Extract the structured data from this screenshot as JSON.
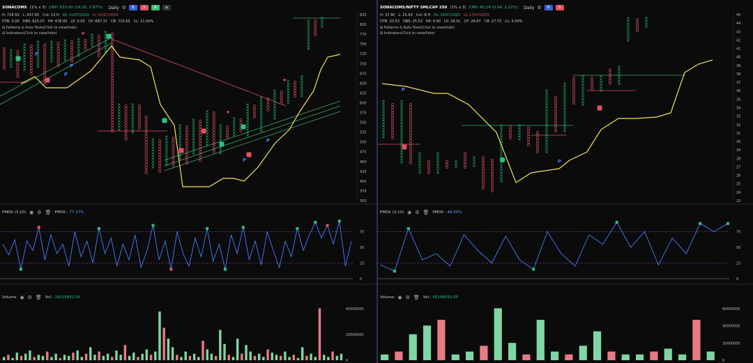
{
  "left": {
    "symbol": "SONACOMS",
    "box": "(1% x 3)",
    "cmp": "CMP: 833.00 (24.00, 2.97%)",
    "timeframe": "Daily",
    "stats": [
      "H: 718.50",
      "L: 637.65",
      "Cnt: 13 H",
      "Dt: 11/07/2024",
      "Lt: 01/07/2024"
    ],
    "stats2": [
      "DTB: 0.00",
      "DBS: 625.07",
      "HP: 678.00",
      "LP: 0.00",
      "CP: 687.37",
      "CB: 725.65",
      "CL: 11.00%"
    ],
    "patterns_label": "Patterns & Auto Tools(Click to view/hide)",
    "indicators_label": "Indicators(Click to view/hide)",
    "price_axis": [
      "825",
      "800",
      "775",
      "750",
      "725",
      "700",
      "675",
      "650",
      "625",
      "600",
      "575",
      "550",
      "525",
      "500",
      "475",
      "450",
      "425",
      "400",
      "375",
      "350"
    ],
    "pmox_label": "PMOX (3,10)",
    "pmox_value_label": "PMOX : ",
    "pmox_value": "77.27%",
    "pmox_axis": [
      "75",
      "50",
      "25",
      "0"
    ],
    "volume_label": "Volume",
    "vol_value_label": "Vol : ",
    "vol_value": "18225852.00",
    "vol_axis": [
      "40000000",
      "20000000",
      "0"
    ],
    "pmox": [
      55,
      38,
      62,
      15,
      60,
      45,
      82,
      30,
      70,
      40,
      55,
      20,
      75,
      35,
      60,
      25,
      80,
      40,
      65,
      20,
      55,
      30,
      70,
      18,
      45,
      85,
      30,
      60,
      15,
      75,
      40,
      20,
      65,
      35,
      80,
      28,
      55,
      15,
      70,
      40,
      82,
      30,
      60,
      22,
      75,
      45,
      18,
      60,
      35,
      80,
      45,
      70,
      90,
      65,
      85,
      55,
      92,
      20,
      60
    ],
    "vol": [
      3,
      5,
      2,
      7,
      4,
      6,
      9,
      3,
      5,
      4,
      8,
      3,
      6,
      2,
      5,
      4,
      7,
      9,
      3,
      6,
      12,
      5,
      8,
      4,
      6,
      3,
      9,
      5,
      14,
      4,
      7,
      3,
      6,
      10,
      5,
      8,
      45,
      30,
      20,
      12,
      5,
      3,
      8,
      4,
      6,
      3,
      18,
      10,
      6,
      4,
      28,
      15,
      5,
      3,
      20,
      6,
      14,
      8,
      4,
      6,
      3,
      10,
      7,
      5,
      4,
      8,
      3,
      5,
      2,
      12,
      4,
      6,
      3,
      48,
      5,
      3,
      8,
      4,
      6
    ]
  },
  "right": {
    "symbol": "SONACOMS/NIFTY SMLCAP 250",
    "box": "(1% x 3)",
    "cmp": "CMP: 45.24 (0.94, 2.12%)",
    "timeframe": "Daily",
    "stats": [
      "H: 37.40",
      "L: 25.63",
      "Cnt: 8 H",
      "Dt: 24/07/2025",
      "Lt: 17/07/2025"
    ],
    "stats2": [
      "DTB: 33.53",
      "DBS: 25.53",
      "HP: 0.00",
      "LP: 28.51",
      "CP: 26.67",
      "CB: 27.73",
      "CL: 6.00%"
    ],
    "patterns_label": "Patterns & Auto Tools(Click to view/hide)",
    "indicators_label": "Indicators(Click to view/hide)",
    "price_axis": [
      "45",
      "44",
      "43",
      "42",
      "41",
      "40",
      "39",
      "38",
      "37",
      "36",
      "35",
      "34",
      "33",
      "32",
      "31",
      "30",
      "29",
      "28",
      "27",
      "26",
      "25",
      "24",
      "23"
    ],
    "pmox_label": "PMOX (3,10)",
    "pmox_value_label": "PMOX : ",
    "pmox_value": "46.00%",
    "pmox_axis": [
      "75",
      "50",
      "25",
      "0"
    ],
    "volume_label": "Volume",
    "vol_value_label": "Vol : ",
    "vol_value": "45196055.00",
    "vol_axis": [
      "60000000",
      "40000000",
      "20000000",
      "0"
    ],
    "pmox": [
      22,
      12,
      80,
      30,
      40,
      20,
      70,
      45,
      25,
      68,
      30,
      15,
      75,
      40,
      20,
      70,
      55,
      90,
      50,
      75,
      22,
      65,
      40,
      88,
      75,
      88
    ],
    "vol": [
      2,
      3,
      9,
      12,
      14,
      2,
      3,
      5,
      18,
      6,
      2,
      14,
      3,
      2,
      5,
      10,
      3,
      2,
      2,
      3,
      4,
      2,
      14,
      3
    ]
  },
  "colors": {
    "up": "#26c281",
    "down": "#e05263",
    "line": "#4a7bff",
    "ma": "#f3e55a",
    "trend_red": "#e05263",
    "trend_green": "#3aa86b"
  }
}
